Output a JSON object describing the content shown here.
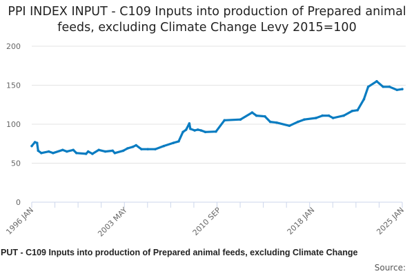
{
  "chart_data": {
    "type": "line",
    "title": "PPI INDEX INPUT - C109 Inputs into production of Prepared animal feeds, excluding Climate Change Levy 2015=100",
    "caption": "PUT - C109 Inputs into production of Prepared animal feeds, excluding Climate Change",
    "source_label": "Source:",
    "xlim": [
      "1996-01",
      "2025-01"
    ],
    "ylim": [
      0,
      200
    ],
    "yticks": [
      0,
      50,
      100,
      150,
      200
    ],
    "xtick_labels": [
      "1996 JAN",
      "2003 MAY",
      "2010 SEP",
      "2018 JAN",
      "2025 JAN"
    ],
    "xtick_label_dates": [
      "1996-01",
      "2003-05",
      "2010-09",
      "2018-01",
      "2025-01"
    ],
    "grid": "horizontal",
    "color": "#0a7cc1",
    "series": [
      {
        "points": [
          [
            "1996-01",
            72
          ],
          [
            "1996-04",
            77
          ],
          [
            "1996-06",
            76
          ],
          [
            "1996-07",
            66
          ],
          [
            "1996-10",
            63
          ],
          [
            "1997-05",
            65
          ],
          [
            "1997-09",
            63
          ],
          [
            "1998-06",
            67
          ],
          [
            "1998-10",
            65
          ],
          [
            "1999-04",
            67
          ],
          [
            "1999-07",
            63
          ],
          [
            "2000-04",
            62
          ],
          [
            "2000-06",
            65
          ],
          [
            "2000-10",
            62
          ],
          [
            "2001-04",
            67
          ],
          [
            "2001-10",
            65
          ],
          [
            "2002-05",
            66
          ],
          [
            "2002-07",
            63
          ],
          [
            "2003-03",
            66
          ],
          [
            "2003-07",
            69
          ],
          [
            "2003-12",
            71
          ],
          [
            "2004-03",
            73
          ],
          [
            "2004-08",
            68
          ],
          [
            "2005-02",
            68
          ],
          [
            "2005-09",
            68
          ],
          [
            "2006-05",
            72
          ],
          [
            "2007-02",
            76
          ],
          [
            "2007-07",
            78
          ],
          [
            "2007-11",
            90
          ],
          [
            "2008-02",
            93
          ],
          [
            "2008-05",
            101
          ],
          [
            "2008-06",
            94
          ],
          [
            "2008-10",
            92
          ],
          [
            "2009-01",
            93
          ],
          [
            "2009-04",
            92
          ],
          [
            "2009-08",
            90
          ],
          [
            "2010-06",
            90.5
          ],
          [
            "2011-02",
            105
          ],
          [
            "2012-05",
            106
          ],
          [
            "2013-04",
            115
          ],
          [
            "2013-08",
            111
          ],
          [
            "2014-04",
            110
          ],
          [
            "2014-09",
            103
          ],
          [
            "2015-03",
            102
          ],
          [
            "2016-03",
            98
          ],
          [
            "2016-11",
            103
          ],
          [
            "2017-05",
            106
          ],
          [
            "2018-04",
            108
          ],
          [
            "2018-10",
            111
          ],
          [
            "2019-04",
            111
          ],
          [
            "2019-08",
            108
          ],
          [
            "2020-06",
            111
          ],
          [
            "2021-02",
            117
          ],
          [
            "2021-07",
            118
          ],
          [
            "2022-01",
            132
          ],
          [
            "2022-05",
            148
          ],
          [
            "2023-01",
            155
          ],
          [
            "2023-07",
            148
          ],
          [
            "2024-01",
            148
          ],
          [
            "2024-08",
            144
          ],
          [
            "2025-01",
            145
          ]
        ]
      }
    ]
  }
}
